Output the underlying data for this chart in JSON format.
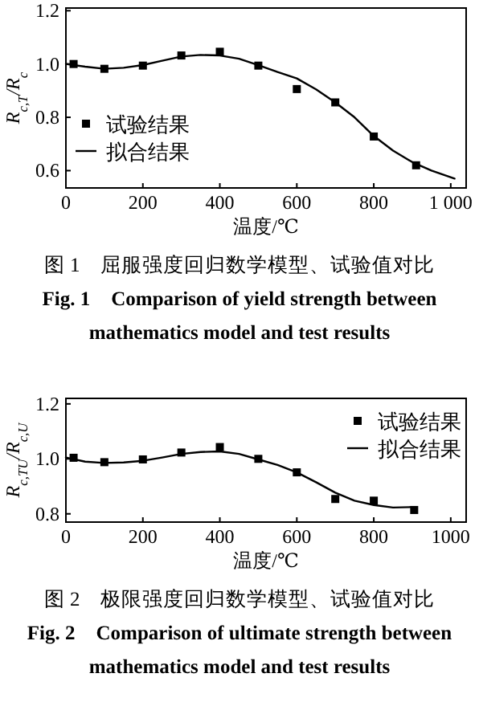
{
  "chart_data": [
    {
      "type": "line",
      "xlabel": "温度/℃",
      "ylabel": "R$_{c,T}$/R$_{c}$",
      "xlim": [
        0,
        1040
      ],
      "ylim": [
        0.535,
        1.21
      ],
      "xticks": [
        0,
        200,
        400,
        600,
        800,
        {
          "value": 1000,
          "label": "1 000"
        }
      ],
      "yticks": [
        0.6,
        0.8,
        {
          "value": 1,
          "label": "1.0"
        },
        1.2
      ],
      "legend": "left",
      "series": [
        {
          "name": "试验结果",
          "type": "scatter",
          "marker": "square",
          "color": "#000000",
          "x": [
            20,
            100,
            200,
            300,
            400,
            500,
            600,
            700,
            800,
            910
          ],
          "values": [
            1.0,
            0.982,
            0.994,
            1.032,
            1.046,
            0.994,
            0.906,
            0.856,
            0.728,
            0.62
          ]
        },
        {
          "name": "拟合结果",
          "type": "line",
          "line_style": "solid",
          "color": "#000000",
          "x": [
            0,
            50,
            100,
            150,
            200,
            250,
            300,
            350,
            400,
            450,
            500,
            550,
            600,
            650,
            700,
            750,
            800,
            850,
            900,
            950,
            1010
          ],
          "values": [
            1.0,
            0.99,
            0.982,
            0.986,
            0.996,
            1.012,
            1.028,
            1.034,
            1.032,
            1.02,
            0.996,
            0.97,
            0.946,
            0.905,
            0.856,
            0.8,
            0.73,
            0.675,
            0.632,
            0.6,
            0.57
          ]
        }
      ],
      "annotations": [
        "图 1　屈服强度回归数学模型、试验值对比",
        "Fig. 1　Comparison of yield strength between mathematics model and test results"
      ]
    },
    {
      "type": "line",
      "xlabel": "温度/℃",
      "ylabel": "R$_{c,TU}$/R$_{c,U}$",
      "xlim": [
        0,
        1040
      ],
      "ylim": [
        0.77,
        1.22
      ],
      "xticks": [
        0,
        200,
        400,
        600,
        800,
        1000
      ],
      "yticks": [
        0.8,
        {
          "value": 1,
          "label": "1.0"
        },
        1.2
      ],
      "legend": "top right",
      "series": [
        {
          "name": "试验结果",
          "type": "scatter",
          "marker": "square",
          "color": "#000000",
          "x": [
            20,
            100,
            200,
            300,
            400,
            500,
            600,
            700,
            800,
            905
          ],
          "values": [
            1.004,
            0.988,
            0.998,
            1.023,
            1.043,
            1.0,
            0.951,
            0.854,
            0.848,
            0.814
          ]
        },
        {
          "name": "拟合结果",
          "type": "line",
          "line_style": "solid",
          "color": "#000000",
          "x": [
            0,
            50,
            100,
            150,
            200,
            250,
            300,
            350,
            400,
            450,
            500,
            550,
            600,
            650,
            700,
            750,
            800,
            850,
            910
          ],
          "values": [
            1.005,
            0.99,
            0.985,
            0.987,
            0.993,
            1.005,
            1.018,
            1.025,
            1.027,
            1.018,
            0.998,
            0.978,
            0.951,
            0.915,
            0.877,
            0.848,
            0.832,
            0.823,
            0.825
          ]
        }
      ],
      "annotations": [
        "图 2　极限强度回归数学模型、试验值对比",
        "Fig. 2　Comparison of ultimate strength between mathematics model and test results"
      ]
    }
  ]
}
